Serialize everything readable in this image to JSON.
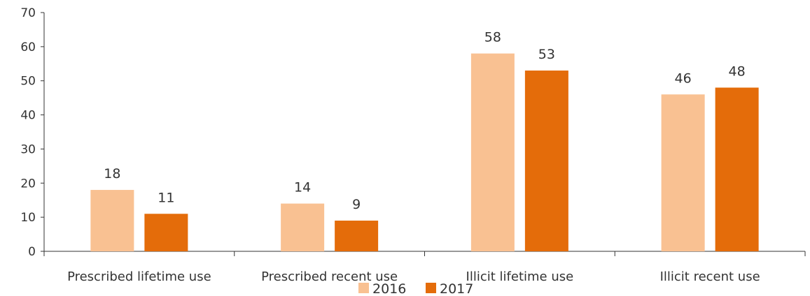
{
  "chart_data": {
    "type": "bar",
    "categories": [
      "Prescribed lifetime use",
      "Prescribed recent use",
      "Illicit lifetime use",
      "Illicit recent use"
    ],
    "series": [
      {
        "name": "2016",
        "values": [
          18,
          14,
          58,
          46
        ],
        "color": "#f9c192"
      },
      {
        "name": "2017",
        "values": [
          11,
          9,
          53,
          48
        ],
        "color": "#e46c0a"
      }
    ],
    "title": "",
    "xlabel": "",
    "ylabel": "",
    "ylim": [
      0,
      70
    ],
    "yticks": [
      0,
      10,
      20,
      30,
      40,
      50,
      60,
      70
    ],
    "grid": false,
    "legend": "bottom"
  }
}
